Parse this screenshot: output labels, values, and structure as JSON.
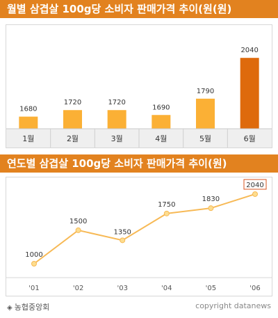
{
  "charts": {
    "monthly": {
      "title": "월별 삼겹살 100g당 소비자 판매가격 추이(원(원)"
    },
    "yearly": {
      "title": "연도별 삼겹살 100g당 소비자 판매가격 추이(원)"
    }
  },
  "footer": {
    "source_marker": "◈",
    "source": "농협중앙회",
    "credit": "copyright datanews"
  },
  "colors": {
    "banner": "#e2821f",
    "bar": "#fbb035",
    "bar_highlight": "#de6a0c",
    "line": "#f7b955",
    "marker_fill": "#fddd8f",
    "highlight_box": "#d9531e"
  },
  "chart_data": [
    {
      "type": "bar",
      "title": "월별 삼겹살 100g당 소비자 판매가격 추이(원(원)",
      "categories": [
        "1월",
        "2월",
        "3월",
        "4월",
        "5월",
        "6월"
      ],
      "values": [
        1680,
        1720,
        1720,
        1690,
        1790,
        2040
      ],
      "highlight_index": 5,
      "xlabel": "",
      "ylabel": "",
      "grid": false
    },
    {
      "type": "line",
      "title": "연도별 삼겹살 100g당 소비자 판매가격 추이(원)",
      "categories": [
        "'01",
        "'02",
        "'03",
        "'04",
        "'05",
        "'06"
      ],
      "values": [
        1000,
        1500,
        1350,
        1750,
        1830,
        2040
      ],
      "boxed_label_index": 5,
      "xlabel": "",
      "ylabel": "",
      "grid": false
    }
  ]
}
